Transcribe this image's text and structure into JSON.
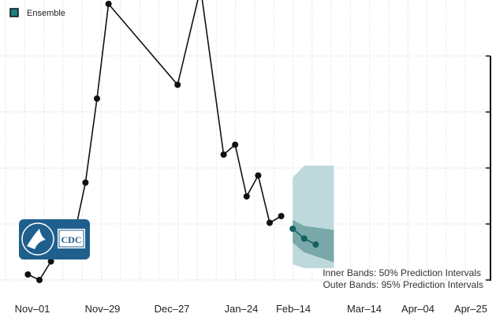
{
  "chart_data": {
    "type": "line",
    "x_tick_labels": [
      "Nov–01",
      "Nov–29",
      "Dec–27",
      "Jan–24",
      "Feb–14",
      "Mar–14",
      "Apr–04",
      "Apr–25"
    ],
    "legend": [
      {
        "label": "Ensemble",
        "color": "#1a7f7f"
      }
    ],
    "grid": true,
    "series": [
      {
        "points": [
          {
            "x": "2021-10-25",
            "y": 14
          },
          {
            "x": "2021-11-01",
            "y": 0
          },
          {
            "x": "2021-11-08",
            "y": 47
          },
          {
            "x": "2021-11-15",
            "y": 118
          },
          {
            "x": "2021-11-22",
            "y": 110
          },
          {
            "x": "2021-11-29",
            "y": 247
          },
          {
            "x": "2021-12-06",
            "y": 460
          },
          {
            "x": "2021-12-13",
            "y": 700
          },
          {
            "x": "2022-01-24",
            "y": 495
          },
          {
            "x": "2022-02-07",
            "y": 740
          },
          {
            "x": "2022-02-21",
            "y": 318
          },
          {
            "x": "2022-02-28",
            "y": 343
          },
          {
            "x": "2022-03-07",
            "y": 212
          },
          {
            "x": "2022-03-14",
            "y": 265
          },
          {
            "x": "2022-03-21",
            "y": 145
          },
          {
            "x": "2022-03-28",
            "y": 162
          }
        ]
      }
    ],
    "forecast": {
      "color": "#1a7f7f",
      "points": [
        {
          "x": "2022-04-04",
          "y": 130,
          "lo50": 95,
          "hi50": 152,
          "lo95": 40,
          "hi95": 260
        },
        {
          "x": "2022-04-11",
          "y": 105,
          "lo50": 70,
          "hi50": 137,
          "lo95": 30,
          "hi95": 290
        },
        {
          "x": "2022-04-18",
          "y": 90,
          "lo50": 45,
          "hi50": 127,
          "lo95": 30,
          "hi95": 290
        }
      ]
    },
    "notes": [
      "Inner Bands: 50% Prediction Intervals",
      "Outer Bands: 95% Prediction Intervals"
    ],
    "logo_text": "CDC"
  }
}
